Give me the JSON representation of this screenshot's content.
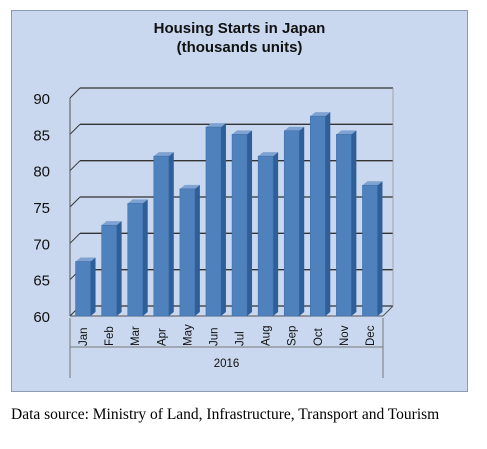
{
  "chart_data": {
    "type": "bar",
    "title": [
      "Housing Starts in Japan",
      "(thousands units)"
    ],
    "categories": [
      "Jan",
      "Feb",
      "Mar",
      "Apr",
      "May",
      "Jun",
      "Jul",
      "Aug",
      "Sep",
      "Oct",
      "Nov",
      "Dec"
    ],
    "values": [
      67.5,
      72.5,
      75.5,
      82,
      77.5,
      86,
      85,
      82,
      85.5,
      87.5,
      85,
      78
    ],
    "category_group": "2016",
    "ylim": [
      60,
      90
    ],
    "yticks": [
      60,
      65,
      70,
      75,
      80,
      85,
      90
    ],
    "grid": true,
    "legend": "none",
    "bar_color": "#4f81bd",
    "bar_top_color": "#7ea3d2",
    "bar_side_color": "#2f5f99",
    "background_color": "#c9d8ef"
  },
  "source_note": "Data source: Ministry of Land, Infrastructure, Transport and Tourism"
}
